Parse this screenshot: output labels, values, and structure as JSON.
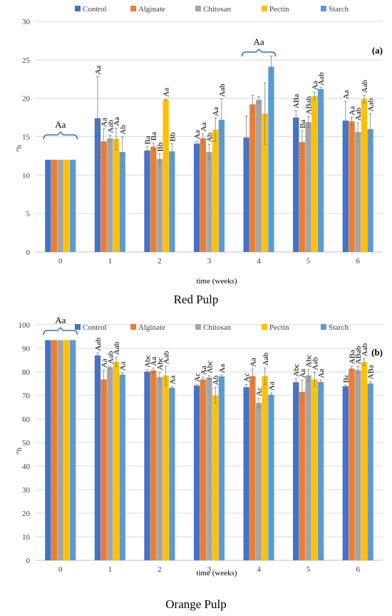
{
  "colors": {
    "Control": "#4472C4",
    "Alginate": "#ED7D31",
    "Chitosan": "#A5A5A5",
    "Pectin": "#FFC000",
    "Starch": "#5B9BD5",
    "axis": "#BFBFBF",
    "text": "#404040",
    "bracket": "#2E75B6"
  },
  "chart_data": [
    {
      "type": "bar",
      "panel_label": "(a)",
      "caption": "Red Pulp",
      "ylabel": "°h",
      "xlabel": "time (weeks)",
      "ylim": [
        0,
        30
      ],
      "yticks": [
        0,
        5,
        10,
        15,
        20,
        25,
        30
      ],
      "categories": [
        "0",
        "1",
        "2",
        "3",
        "4",
        "5",
        "6"
      ],
      "legend": {
        "placement": "top",
        "entries": [
          "Control",
          "Alginate",
          "Chitosan",
          "Pectin",
          "Starch"
        ]
      },
      "group_brackets": [
        {
          "category_index": 0,
          "label": "Aa"
        },
        {
          "category_index": 4,
          "label": "Aa"
        }
      ],
      "series": [
        {
          "name": "Control",
          "values": [
            12.0,
            17.4,
            13.2,
            14.1,
            14.9,
            17.5,
            17.1
          ],
          "errors": [
            0,
            5.4,
            0.5,
            0.3,
            2.8,
            0.9,
            2.5
          ],
          "labels": [
            "",
            "Aa",
            "Ba",
            "Aa",
            "",
            "ABa",
            "Aa"
          ]
        },
        {
          "name": "Alginate",
          "values": [
            12.0,
            14.4,
            13.7,
            14.8,
            19.2,
            14.3,
            17.0
          ],
          "errors": [
            0,
            1.6,
            0.5,
            0.6,
            1.2,
            1.5,
            0.5
          ],
          "labels": [
            "",
            "Aa",
            "Ba",
            "Aa",
            "",
            "Ba",
            "Aa"
          ]
        },
        {
          "name": "Chitosan",
          "values": [
            12.0,
            14.8,
            12.1,
            13.0,
            19.8,
            16.9,
            15.6
          ],
          "errors": [
            0,
            0.4,
            0.7,
            1.0,
            0.4,
            0.7,
            1.2
          ],
          "labels": [
            "",
            "Aab",
            "Bb",
            "Ab",
            "",
            "ABab",
            "Aab"
          ]
        },
        {
          "name": "Pectin",
          "values": [
            12.0,
            14.7,
            19.8,
            15.9,
            18.0,
            20.3,
            19.9
          ],
          "errors": [
            0,
            1.4,
            0.1,
            1.5,
            4.0,
            0.5,
            0.5
          ],
          "labels": [
            "",
            "Aa",
            "Aa",
            "Aa",
            "",
            "Aa",
            "Aab"
          ]
        },
        {
          "name": "Starch",
          "values": [
            12.0,
            13.0,
            13.1,
            17.2,
            24.1,
            21.2,
            16.0
          ],
          "errors": [
            0,
            2.0,
            1.0,
            2.7,
            1.4,
            0.2,
            2.0
          ],
          "labels": [
            "",
            "Ab",
            "Bb",
            "Aab",
            "",
            "Aab",
            "Aab"
          ]
        }
      ]
    },
    {
      "type": "bar",
      "panel_label": "(b)",
      "caption": "Orange Pulp",
      "ylabel": "°h",
      "xlabel": "time (weeks)",
      "ylim": [
        0,
        100
      ],
      "yticks": [
        0,
        10,
        20,
        30,
        40,
        50,
        60,
        70,
        80,
        90,
        100
      ],
      "categories": [
        "0",
        "1",
        "2",
        "3",
        "4",
        "5",
        "6"
      ],
      "legend": {
        "placement": "top",
        "entries": [
          "Control",
          "Alginate",
          "Chitosan",
          "Pectin",
          "Starch"
        ]
      },
      "group_brackets": [
        {
          "category_index": 0,
          "label": "Aa"
        }
      ],
      "series": [
        {
          "name": "Control",
          "values": [
            93.5,
            87.0,
            80.1,
            74.2,
            73.5,
            75.6,
            73.9
          ],
          "errors": [
            0,
            1.0,
            0.8,
            0.6,
            1.2,
            1.5,
            0.5
          ],
          "labels": [
            "",
            "Aab",
            "Abc",
            "Ac",
            "Ac",
            "Abc",
            "Bc"
          ]
        },
        {
          "name": "Alginate",
          "values": [
            93.5,
            76.8,
            80.6,
            76.8,
            78.2,
            71.5,
            81.4
          ],
          "errors": [
            0,
            4.0,
            1.0,
            1.0,
            3.0,
            5.0,
            1.0
          ],
          "labels": [
            "",
            "Aa",
            "Aa",
            "Aa",
            "Aa",
            "Aa",
            "ABa"
          ]
        },
        {
          "name": "Chitosan",
          "values": [
            93.5,
            82.0,
            77.8,
            77.6,
            66.8,
            78.5,
            80.8
          ],
          "errors": [
            0,
            0.4,
            2.0,
            0.8,
            2.0,
            2.5,
            1.5
          ],
          "labels": [
            "",
            "Aab",
            "Abc",
            "Abc",
            "Ac",
            "Abc",
            "ABab"
          ]
        },
        {
          "name": "Pectin",
          "values": [
            93.5,
            84.3,
            78.4,
            70.0,
            78.2,
            76.8,
            84.2
          ],
          "errors": [
            0,
            2.0,
            4.0,
            3.5,
            3.5,
            3.0,
            1.5
          ],
          "labels": [
            "",
            "Aab",
            "Aab",
            "Ab",
            "Aab",
            "Aab",
            "Aab"
          ]
        },
        {
          "name": "Starch",
          "values": [
            93.5,
            78.8,
            73.2,
            78.1,
            70.3,
            75.7,
            75.1
          ],
          "errors": [
            0,
            0.8,
            0.5,
            0.5,
            0.8,
            0.8,
            0.8
          ],
          "labels": [
            "",
            "Aa",
            "Aa",
            "Aa",
            "Aa",
            "Aa",
            "ABa"
          ]
        }
      ]
    }
  ]
}
